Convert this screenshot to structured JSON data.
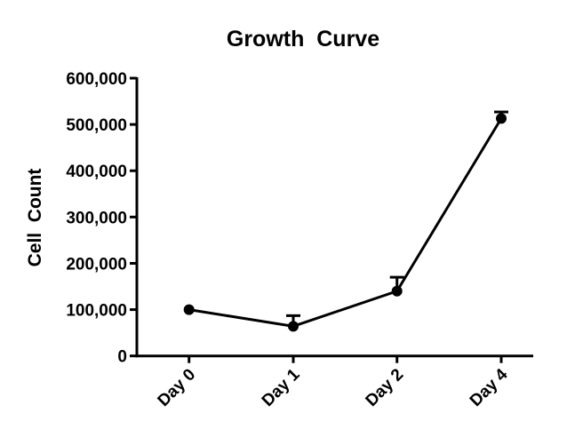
{
  "chart_data": {
    "type": "line",
    "title": "Growth  Curve",
    "xlabel": "",
    "ylabel": "Cell  Count",
    "categories": [
      "Day 0",
      "Day 1",
      "Day 2",
      "Day 4"
    ],
    "series": [
      {
        "name": "Cell Count",
        "values": [
          100000,
          64000,
          140000,
          513000
        ],
        "error_upper": [
          0,
          23000,
          30000,
          14000
        ]
      }
    ],
    "ylim": [
      0,
      600000
    ],
    "yticks": [
      0,
      100000,
      200000,
      300000,
      400000,
      500000,
      600000
    ],
    "ytick_labels": [
      "0",
      "100,000",
      "200,000",
      "300,000",
      "400,000",
      "500,000",
      "600,000"
    ],
    "grid": false,
    "legend": "none",
    "color": "#000000"
  }
}
